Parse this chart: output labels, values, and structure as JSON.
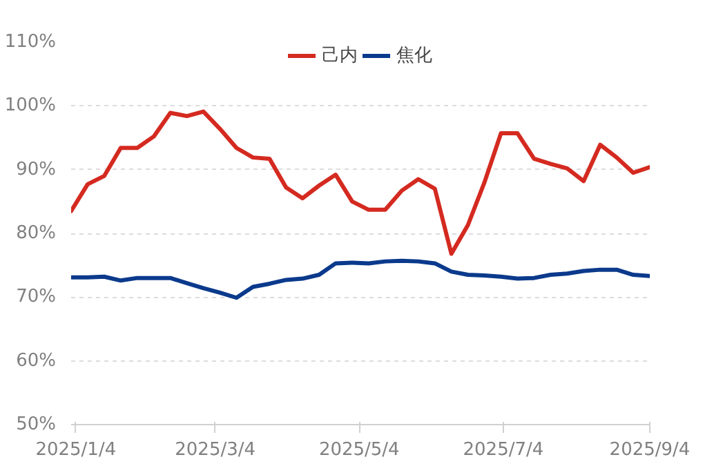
{
  "chart_data": {
    "type": "line",
    "legend": "top",
    "grid": "y",
    "marker": "none",
    "line_style": "solid",
    "x": [
      "2025-01-02",
      "2025-01-09",
      "2025-01-16",
      "2025-01-23",
      "2025-01-30",
      "2025-02-06",
      "2025-02-13",
      "2025-02-20",
      "2025-02-27",
      "2025-03-06",
      "2025-03-13",
      "2025-03-20",
      "2025-03-27",
      "2025-04-03",
      "2025-04-10",
      "2025-04-17",
      "2025-04-24",
      "2025-05-01",
      "2025-05-08",
      "2025-05-15",
      "2025-05-22",
      "2025-05-29",
      "2025-06-05",
      "2025-06-12",
      "2025-06-19",
      "2025-06-26",
      "2025-07-03",
      "2025-07-10",
      "2025-07-17",
      "2025-07-24",
      "2025-07-31",
      "2025-08-07",
      "2025-08-14",
      "2025-08-21",
      "2025-08-28",
      "2025-09-04"
    ],
    "xlim": [
      "2025-01-02",
      "2025-09-04"
    ],
    "xticks": [
      {
        "value": "2025-01-04",
        "label": "2025/1/4"
      },
      {
        "value": "2025-03-04",
        "label": "2025/3/4"
      },
      {
        "value": "2025-05-04",
        "label": "2025/5/4"
      },
      {
        "value": "2025-07-04",
        "label": "2025/7/4"
      },
      {
        "value": "2025-09-04",
        "label": "2025/9/4"
      }
    ],
    "ylim": [
      50,
      110
    ],
    "yticks": [
      {
        "value": 50,
        "label": "50%"
      },
      {
        "value": 60,
        "label": "60%"
      },
      {
        "value": 70,
        "label": "70%"
      },
      {
        "value": 80,
        "label": "80%"
      },
      {
        "value": 90,
        "label": "90%"
      },
      {
        "value": 100,
        "label": "100%"
      },
      {
        "value": 110,
        "label": "110%"
      }
    ],
    "series": [
      {
        "name": "己内",
        "color": "#d42a20",
        "values": [
          83.5,
          87.7,
          89.0,
          93.4,
          93.4,
          95.2,
          98.9,
          98.4,
          99.1,
          96.4,
          93.4,
          91.9,
          91.7,
          87.2,
          85.5,
          87.5,
          89.2,
          85.0,
          83.7,
          83.7,
          86.7,
          88.5,
          87.0,
          76.8,
          81.3,
          88.0,
          95.7,
          95.7,
          91.7,
          90.9,
          90.2,
          88.2,
          93.9,
          91.9,
          89.5,
          90.4
        ]
      },
      {
        "name": "焦化",
        "color": "#0b3a8c",
        "values": [
          73.1,
          73.1,
          73.2,
          72.6,
          73.0,
          73.0,
          73.0,
          72.2,
          71.4,
          70.7,
          69.9,
          71.6,
          72.1,
          72.7,
          72.9,
          73.5,
          75.3,
          75.4,
          75.3,
          75.6,
          75.7,
          75.6,
          75.3,
          74.0,
          73.5,
          73.4,
          73.2,
          72.9,
          73.0,
          73.5,
          73.7,
          74.1,
          74.3,
          74.3,
          73.5,
          73.3
        ]
      }
    ]
  }
}
